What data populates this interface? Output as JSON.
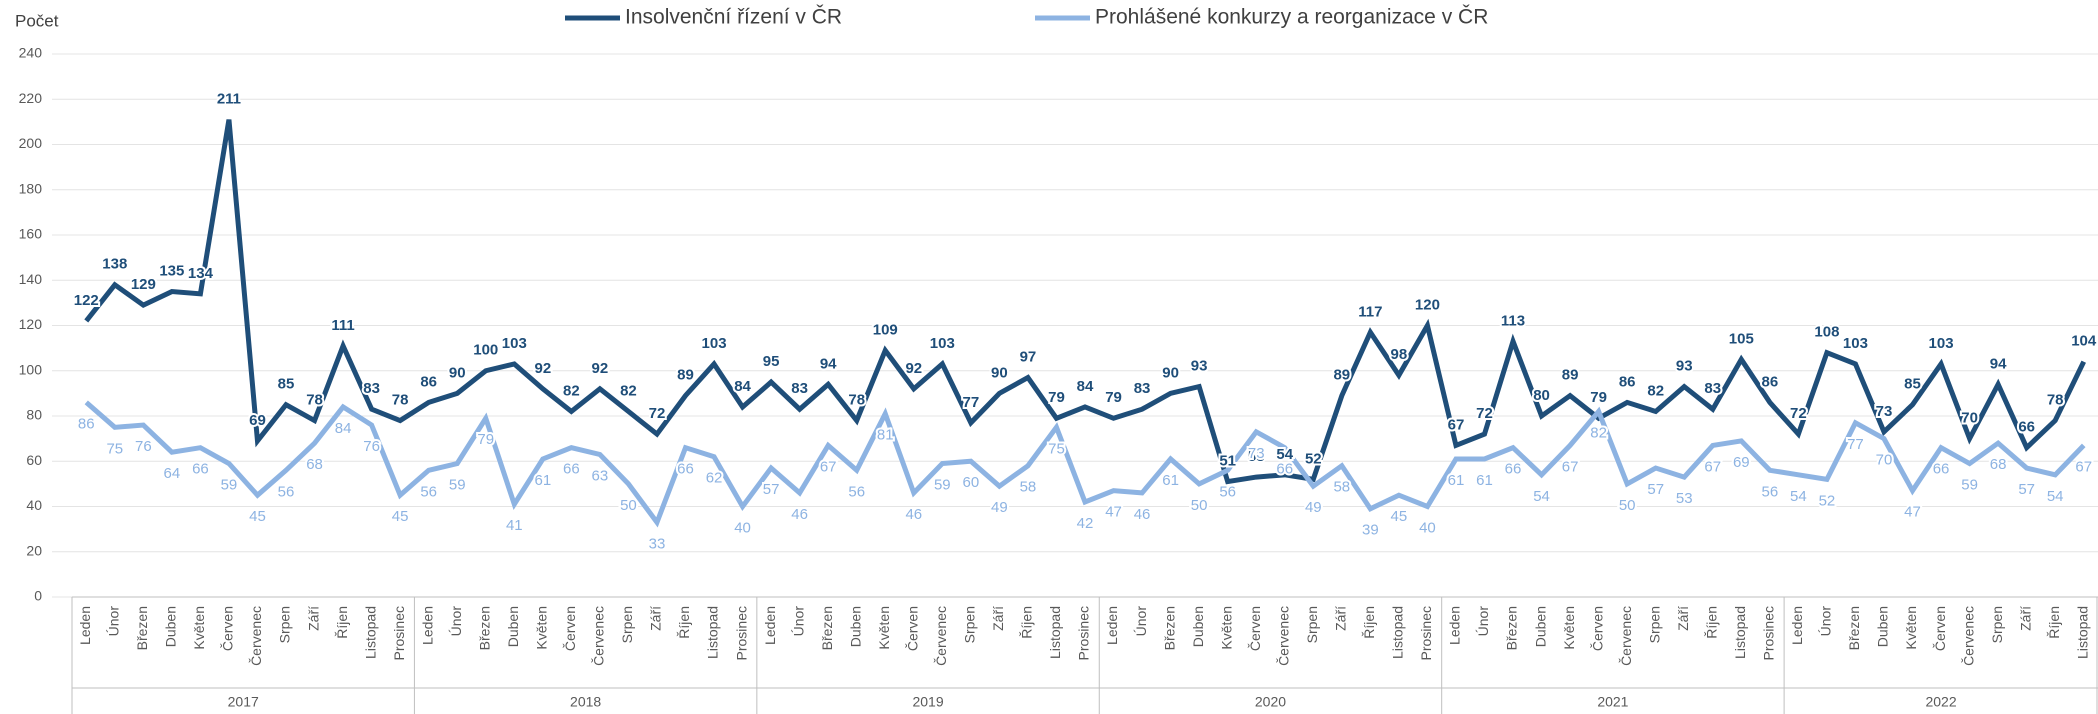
{
  "chart_data": {
    "type": "line",
    "y_label": "Počet",
    "ylim": [
      0,
      240
    ],
    "yticks": [
      0,
      20,
      40,
      60,
      80,
      100,
      120,
      140,
      160,
      180,
      200,
      220,
      240
    ],
    "grid": true,
    "legend": "top",
    "years": [
      "2017",
      "2018",
      "2019",
      "2020",
      "2021",
      "2022"
    ],
    "categories": [
      "Leden",
      "Únor",
      "Březen",
      "Duben",
      "Květen",
      "Červen",
      "Červenec",
      "Srpen",
      "Září",
      "Říjen",
      "Listopad",
      "Prosinec",
      "Leden",
      "Únor",
      "Březen",
      "Duben",
      "Květen",
      "Červen",
      "Červenec",
      "Srpen",
      "Září",
      "Říjen",
      "Listopad",
      "Prosinec",
      "Leden",
      "Únor",
      "Březen",
      "Duben",
      "Květen",
      "Červen",
      "Červenec",
      "Srpen",
      "Září",
      "Říjen",
      "Listopad",
      "Prosinec",
      "Leden",
      "Únor",
      "Březen",
      "Duben",
      "Květen",
      "Červen",
      "Červenec",
      "Srpen",
      "Září",
      "Říjen",
      "Listopad",
      "Prosinec",
      "Leden",
      "Únor",
      "Březen",
      "Duben",
      "Květen",
      "Červen",
      "Červenec",
      "Srpen",
      "Září",
      "Říjen",
      "Listopad",
      "Prosinec",
      "Leden",
      "Únor",
      "Březen",
      "Duben",
      "Květen",
      "Červen",
      "Červenec",
      "Srpen",
      "Září",
      "Říjen",
      "Listopad"
    ],
    "series": [
      {
        "name": "Insolvenční řízení v ČR",
        "color": "#1f4e79",
        "values": [
          122,
          138,
          129,
          135,
          134,
          211,
          69,
          85,
          78,
          111,
          83,
          78,
          86,
          90,
          100,
          103,
          92,
          82,
          92,
          82,
          72,
          89,
          103,
          84,
          95,
          83,
          94,
          78,
          109,
          92,
          103,
          77,
          90,
          97,
          79,
          84,
          79,
          83,
          90,
          93,
          51,
          53,
          54,
          52,
          89,
          117,
          98,
          120,
          67,
          72,
          113,
          80,
          89,
          79,
          86,
          82,
          93,
          83,
          105,
          86,
          72,
          108,
          103,
          73,
          85,
          103,
          70,
          94,
          66,
          78,
          104
        ]
      },
      {
        "name": "Prohlášené konkurzy a reorganizace v ČR",
        "color": "#8db3e2",
        "values": [
          86,
          75,
          76,
          64,
          66,
          59,
          45,
          56,
          68,
          84,
          76,
          45,
          56,
          59,
          79,
          41,
          61,
          66,
          63,
          50,
          33,
          66,
          62,
          40,
          57,
          46,
          67,
          56,
          81,
          46,
          59,
          60,
          49,
          58,
          75,
          42,
          47,
          46,
          61,
          50,
          56,
          73,
          66,
          49,
          58,
          39,
          45,
          40,
          61,
          61,
          66,
          54,
          67,
          82,
          50,
          57,
          53,
          67,
          69,
          56,
          54,
          52,
          77,
          70,
          47,
          66,
          59,
          68,
          57,
          54,
          67
        ]
      }
    ]
  }
}
